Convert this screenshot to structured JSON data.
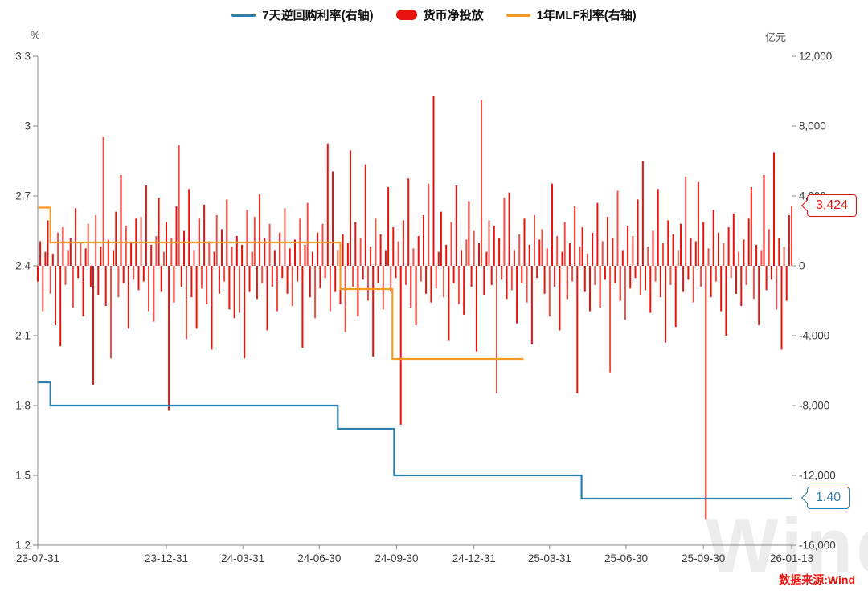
{
  "legend": {
    "items": [
      {
        "label": "7天逆回购利率(右轴)",
        "swatch": "line",
        "color": "#2e7fad"
      },
      {
        "label": "货币净投放",
        "swatch": "bar",
        "color": "#e8130c"
      },
      {
        "label": "1年MLF利率(右轴)",
        "swatch": "line",
        "color": "#f59a23"
      }
    ]
  },
  "axes": {
    "left_unit": "%",
    "right_unit": "亿元"
  },
  "callouts": {
    "bar_value": "3,424",
    "repo_value": "1.40"
  },
  "source": "数据来源:Wind",
  "watermark": "Wind",
  "chart_data": {
    "type": "combo",
    "title": "",
    "x_axis": {
      "start": "2023-07-31",
      "end": "2026-01-13",
      "tick_dates": [
        "2023-07-31",
        "2023-12-31",
        "2024-03-31",
        "2024-06-30",
        "2024-09-30",
        "2024-12-31",
        "2025-03-31",
        "2025-06-30",
        "2025-09-30",
        "2026-01-13"
      ],
      "tick_labels": [
        "23-07-31",
        "23-12-31",
        "24-03-31",
        "24-06-30",
        "24-09-30",
        "24-12-31",
        "25-03-31",
        "25-06-30",
        "25-09-30",
        "26-01-13"
      ]
    },
    "left_axis": {
      "unit": "%",
      "min": 1.2,
      "max": 3.3,
      "tick_values": [
        3.3,
        3,
        2.7,
        2.4,
        2.1,
        1.8,
        1.5,
        1.2
      ],
      "tick_labels": [
        "3.3",
        "3",
        "2.7",
        "2.4",
        "2.1",
        "1.8",
        "1.5",
        "1.2"
      ]
    },
    "right_axis": {
      "unit": "亿元",
      "min": -16000,
      "max": 12000,
      "tick_values": [
        12000,
        8000,
        4000,
        0,
        -4000,
        -8000,
        -12000,
        -16000
      ],
      "tick_labels": [
        "12,000",
        "8,000",
        "4,000",
        "0",
        "-4,000",
        "-8,000",
        "-12,000",
        "-16,000"
      ]
    },
    "series": [
      {
        "name": "7天逆回购利率(右轴)",
        "type": "step",
        "axis": "left",
        "color": "#2e7fad",
        "last_value_label": "1.40",
        "points": [
          [
            "2023-07-31",
            1.9
          ],
          [
            "2023-08-15",
            1.8
          ],
          [
            "2024-07-22",
            1.7
          ],
          [
            "2024-09-27",
            1.5
          ],
          [
            "2025-05-08",
            1.4
          ],
          [
            "2026-01-13",
            1.4
          ]
        ]
      },
      {
        "name": "1年MLF利率(右轴)",
        "type": "step",
        "axis": "left",
        "color": "#f59a23",
        "points": [
          [
            "2023-07-31",
            2.65
          ],
          [
            "2023-08-15",
            2.5
          ],
          [
            "2024-07-25",
            2.3
          ],
          [
            "2024-09-25",
            2.0
          ],
          [
            "2025-02-28",
            2.0
          ]
        ]
      },
      {
        "name": "货币净投放",
        "type": "bar",
        "axis": "right",
        "color": "#e8130c",
        "last_value_label": "3,424",
        "last_value": 3424,
        "values": [
          -900,
          1400,
          -2600,
          800,
          2600,
          -1600,
          700,
          -3400,
          1900,
          -4600,
          2200,
          -1100,
          900,
          1600,
          -2400,
          3300,
          -700,
          1300,
          -2900,
          1000,
          2400,
          -1200,
          -6800,
          2900,
          -1700,
          1100,
          7400,
          -2300,
          1500,
          -5300,
          900,
          3100,
          -1800,
          5200,
          -1000,
          2300,
          -3600,
          1300,
          -800,
          2700,
          -1400,
          2800,
          -900,
          4600,
          -2600,
          1200,
          -3200,
          1700,
          3900,
          -1500,
          800,
          2500,
          -8300,
          1600,
          -2100,
          3400,
          6900,
          -1200,
          2000,
          -4200,
          4400,
          -1800,
          900,
          -3600,
          2700,
          -1300,
          3500,
          -2200,
          1400,
          -4800,
          800,
          2900,
          -1600,
          2100,
          -900,
          3800,
          -2500,
          1100,
          -3000,
          1700,
          -2700,
          1200,
          -5300,
          3200,
          -1500,
          800,
          2800,
          -1900,
          4100,
          -1000,
          1600,
          -3700,
          2400,
          -1200,
          900,
          -2600,
          1900,
          -700,
          3300,
          -1600,
          1000,
          -2300,
          1500,
          -900,
          2700,
          -4700,
          1200,
          3600,
          -1800,
          800,
          -3000,
          1900,
          -1300,
          2400,
          -700,
          7000,
          -2600,
          5400,
          -1500,
          900,
          -2200,
          1800,
          -3800,
          1300,
          6600,
          -1200,
          2500,
          -2900,
          1600,
          -800,
          5800,
          -2000,
          1100,
          -5200,
          2700,
          -1000,
          1800,
          -2500,
          900,
          4500,
          -1500,
          2200,
          -700,
          1400,
          -9100,
          2600,
          -1100,
          5000,
          -2400,
          1000,
          -3400,
          1700,
          -900,
          2900,
          -1600,
          4700,
          -2100,
          9700,
          -1300,
          800,
          3100,
          -1800,
          1200,
          -4300,
          2500,
          -1000,
          4600,
          -2200,
          900,
          -2800,
          1500,
          3700,
          -1200,
          2000,
          -4900,
          1300,
          9500,
          -1700,
          800,
          2600,
          -1100,
          2300,
          -7300,
          1600,
          -800,
          3900,
          -1900,
          4200,
          -1400,
          900,
          -3300,
          1800,
          -1000,
          2700,
          -2100,
          1200,
          -4500,
          2900,
          -700,
          1500,
          2100,
          -1600,
          1000,
          -2900,
          4700,
          -1200,
          1700,
          -3700,
          800,
          2500,
          -1900,
          1300,
          -900,
          3400,
          -7300,
          1100,
          2200,
          -1500,
          700,
          -2600,
          1900,
          -1100,
          3600,
          -2400,
          1400,
          -800,
          2800,
          -6100,
          1600,
          -1000,
          4300,
          -2000,
          900,
          -3100,
          2300,
          -1300,
          1700,
          -700,
          3800,
          -1700,
          6000,
          -1400,
          1100,
          -2700,
          2000,
          -900,
          4400,
          -1800,
          1300,
          -4400,
          2600,
          -1100,
          1800,
          -3500,
          900,
          2400,
          -1500,
          5100,
          -800,
          1600,
          -2100,
          1400,
          4800,
          -1200,
          2500,
          -14500,
          1000,
          -1800,
          3200,
          -900,
          1900,
          -2600,
          1300,
          -4000,
          2200,
          -700,
          3000,
          -1600,
          800,
          -2300,
          1500,
          -1100,
          2700,
          4500,
          -1900,
          1200,
          -3400,
          900,
          5200,
          -1400,
          2100,
          -800,
          6500,
          -2500,
          1600,
          -4800,
          1100,
          -2000,
          2900,
          3424
        ]
      }
    ]
  }
}
